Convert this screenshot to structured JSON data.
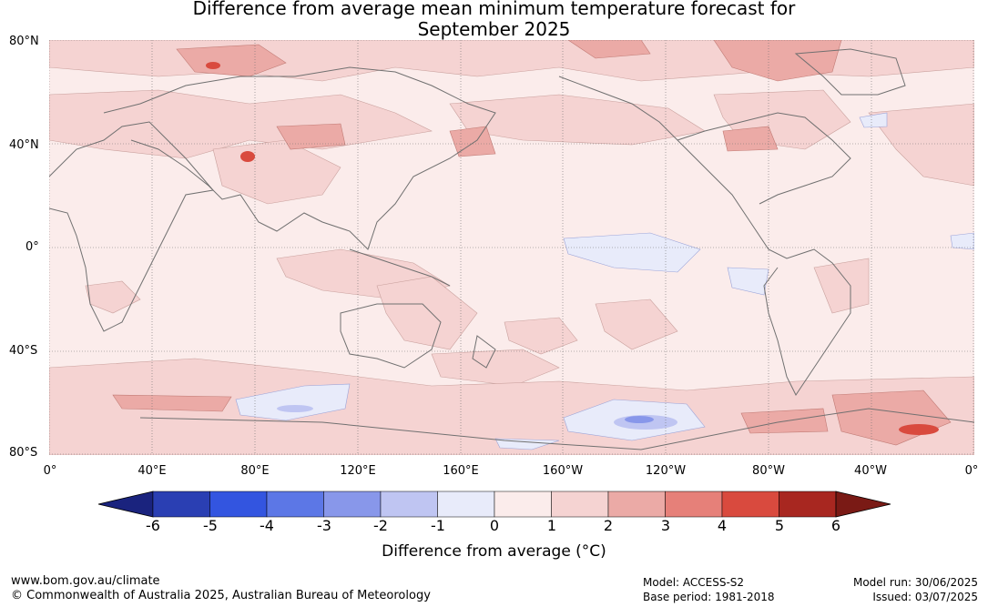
{
  "title_line1": "Difference from average mean minimum temperature forecast for",
  "title_line2": "September 2025",
  "lat_labels": [
    "80°N",
    "40°N",
    "0°",
    "40°S",
    "80°S"
  ],
  "lon_labels": [
    "0°",
    "40°E",
    "80°E",
    "120°E",
    "160°E",
    "160°W",
    "120°W",
    "80°W",
    "40°W",
    "0°"
  ],
  "colorbar": {
    "ticks": [
      "-6",
      "-5",
      "-4",
      "-3",
      "-2",
      "-1",
      "0",
      "1",
      "2",
      "3",
      "4",
      "5",
      "6"
    ],
    "colors": [
      "#1a237e",
      "#2a3fb3",
      "#3355e0",
      "#5c77e6",
      "#8897ea",
      "#bfc5f2",
      "#e8ebfa",
      "#fbeceb",
      "#f5d3d2",
      "#ebaaa6",
      "#e68079",
      "#d94a3e",
      "#a82720",
      "#7a1a15"
    ],
    "title": "Difference from average (°C)"
  },
  "footer": {
    "url": "www.bom.gov.au/climate",
    "copyright": "© Commonwealth of Australia 2025, Australian Bureau of Meteorology",
    "model": "Model: ACCESS-S2",
    "base_period": "Base period: 1981-2018",
    "model_run": "Model run: 30/06/2025",
    "issued": "Issued: 03/07/2025"
  }
}
